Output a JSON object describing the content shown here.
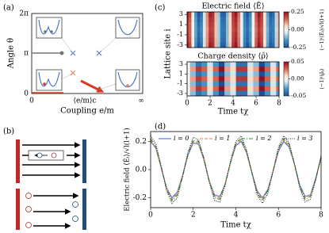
{
  "diagram_a": {
    "label": "(a)",
    "ylabel": "Angle θ",
    "yticks": [
      "2π",
      "π",
      "0"
    ],
    "xlabel": "Coupling e/m",
    "xticks": [
      "0",
      "⟨e/m⟩c",
      "∞"
    ]
  },
  "diagram_b": {
    "label": "(b)"
  },
  "chart_data": [
    {
      "type": "heatmap",
      "label": "(c)",
      "title": "Electric field ⟨Ê⟩",
      "colorbar_label": "(−1)ⁱ⟨Êᵢ⟩/√l(l+1)",
      "x": [
        0,
        0.25,
        0.5,
        0.75,
        1,
        1.25,
        1.5,
        1.75,
        2,
        2.25,
        2.5,
        2.75,
        3,
        3.25,
        3.5,
        3.75,
        4,
        4.25,
        4.5,
        4.75,
        5,
        5.25,
        5.5,
        5.75,
        6,
        6.25,
        6.5,
        6.75,
        7,
        7.25,
        7.5,
        7.75,
        8
      ],
      "y": [
        3,
        2,
        1,
        0,
        -1,
        -2,
        -3
      ],
      "values": [
        [
          0.24,
          0.18,
          0.02,
          -0.15,
          -0.24,
          -0.2,
          -0.05,
          0.12,
          0.23,
          0.21,
          0.08,
          -0.09,
          -0.22,
          -0.23,
          -0.11,
          0.06,
          0.2,
          0.24,
          0.14,
          -0.02,
          -0.18,
          -0.24,
          -0.17,
          -0.01,
          0.16,
          0.24,
          0.19,
          0.04,
          -0.13,
          -0.23,
          -0.21,
          -0.07,
          0.1
        ],
        [
          0.22,
          0.16,
          0.02,
          -0.14,
          -0.22,
          -0.18,
          -0.05,
          0.11,
          0.21,
          0.2,
          0.08,
          -0.08,
          -0.2,
          -0.21,
          -0.1,
          0.05,
          0.19,
          0.22,
          0.13,
          -0.02,
          -0.17,
          -0.22,
          -0.15,
          -0.01,
          0.15,
          0.22,
          0.18,
          0.04,
          -0.12,
          -0.21,
          -0.19,
          -0.07,
          0.09
        ],
        [
          0.21,
          0.15,
          0.01,
          -0.13,
          -0.21,
          -0.17,
          -0.04,
          0.11,
          0.2,
          0.19,
          0.07,
          -0.08,
          -0.19,
          -0.2,
          -0.1,
          0.05,
          0.18,
          0.21,
          0.12,
          -0.02,
          -0.16,
          -0.21,
          -0.15,
          -0.01,
          0.14,
          0.21,
          0.17,
          0.04,
          -0.12,
          -0.2,
          -0.18,
          -0.07,
          0.09
        ],
        [
          0.2,
          0.15,
          0.01,
          -0.13,
          -0.2,
          -0.16,
          -0.04,
          0.1,
          0.19,
          0.18,
          0.07,
          -0.08,
          -0.18,
          -0.19,
          -0.1,
          0.05,
          0.17,
          0.2,
          0.12,
          -0.02,
          -0.15,
          -0.2,
          -0.14,
          -0.01,
          0.13,
          0.2,
          0.16,
          0.04,
          -0.11,
          -0.19,
          -0.18,
          -0.06,
          0.08
        ],
        [
          0.21,
          0.15,
          0.01,
          -0.13,
          -0.21,
          -0.17,
          -0.04,
          0.11,
          0.2,
          0.19,
          0.07,
          -0.08,
          -0.19,
          -0.2,
          -0.1,
          0.05,
          0.18,
          0.21,
          0.12,
          -0.02,
          -0.16,
          -0.21,
          -0.15,
          -0.01,
          0.14,
          0.21,
          0.17,
          0.04,
          -0.12,
          -0.2,
          -0.18,
          -0.07,
          0.09
        ],
        [
          0.22,
          0.16,
          0.02,
          -0.14,
          -0.22,
          -0.18,
          -0.05,
          0.11,
          0.21,
          0.2,
          0.08,
          -0.08,
          -0.2,
          -0.21,
          -0.1,
          0.05,
          0.19,
          0.22,
          0.13,
          -0.02,
          -0.17,
          -0.22,
          -0.15,
          -0.01,
          0.15,
          0.22,
          0.18,
          0.04,
          -0.12,
          -0.21,
          -0.19,
          -0.07,
          0.09
        ],
        [
          0.24,
          0.18,
          0.02,
          -0.15,
          -0.24,
          -0.2,
          -0.05,
          0.12,
          0.23,
          0.21,
          0.08,
          -0.09,
          -0.22,
          -0.23,
          -0.11,
          0.06,
          0.2,
          0.24,
          0.14,
          -0.02,
          -0.18,
          -0.24,
          -0.17,
          -0.01,
          0.16,
          0.24,
          0.19,
          0.04,
          -0.13,
          -0.23,
          -0.21,
          -0.07,
          0.1
        ]
      ],
      "xlim": [
        0,
        8
      ],
      "ylim": [
        -3.5,
        3.5
      ],
      "yticks": [
        3,
        1,
        -1,
        -3
      ],
      "vlim": [
        -0.25,
        0.25
      ],
      "vticks": [
        0.25,
        {
          "value": 0,
          "label": "0.00"
        },
        -0.25
      ]
    },
    {
      "type": "heatmap",
      "title": "Charge density ⟨ρ̂⟩",
      "colorbar_label": "(−1)ⁱ⟨ρ̂ᵢ⟩",
      "xlabel": "Time tχ",
      "ylabel": "Lattice site i",
      "x": [
        0,
        0.5,
        1,
        1.5,
        2,
        2.5,
        3,
        3.5,
        4,
        4.5,
        5,
        5.5,
        6,
        6.5,
        7,
        7.5,
        8
      ],
      "y": [
        3,
        2,
        1,
        0,
        -1,
        -2,
        -3
      ],
      "values": [
        [
          0.0,
          -0.02,
          -0.04,
          -0.03,
          -0.01,
          -0.03,
          -0.05,
          -0.02,
          -0.01,
          -0.04,
          -0.04,
          -0.01,
          -0.02,
          -0.05,
          -0.03,
          -0.01,
          -0.03
        ],
        [
          0.0,
          0.02,
          0.04,
          0.03,
          0.01,
          0.03,
          0.05,
          0.02,
          0.01,
          0.04,
          0.04,
          0.01,
          0.02,
          0.05,
          0.03,
          0.01,
          0.03
        ],
        [
          0.0,
          -0.02,
          -0.04,
          -0.03,
          -0.01,
          -0.03,
          -0.05,
          -0.02,
          -0.01,
          -0.04,
          -0.04,
          -0.01,
          -0.02,
          -0.05,
          -0.03,
          -0.01,
          -0.03
        ],
        [
          0.0,
          0.02,
          0.04,
          0.03,
          0.01,
          0.03,
          0.05,
          0.02,
          0.01,
          0.04,
          0.04,
          0.01,
          0.02,
          0.05,
          0.03,
          0.01,
          0.03
        ],
        [
          0.0,
          -0.02,
          -0.04,
          -0.03,
          -0.01,
          -0.03,
          -0.05,
          -0.02,
          -0.01,
          -0.04,
          -0.04,
          -0.01,
          -0.02,
          -0.05,
          -0.03,
          -0.01,
          -0.03
        ],
        [
          0.0,
          0.02,
          0.04,
          0.03,
          0.01,
          0.03,
          0.05,
          0.02,
          0.01,
          0.04,
          0.04,
          0.01,
          0.02,
          0.05,
          0.03,
          0.01,
          0.03
        ],
        [
          0.0,
          -0.02,
          -0.04,
          -0.03,
          -0.01,
          -0.03,
          -0.05,
          -0.02,
          -0.01,
          -0.04,
          -0.04,
          -0.01,
          -0.02,
          -0.05,
          -0.03,
          -0.01,
          -0.03
        ]
      ],
      "xlim": [
        0,
        8
      ],
      "ylim": [
        -3.5,
        3.5
      ],
      "xticks": [
        0,
        2,
        4,
        6,
        8
      ],
      "yticks": [
        3,
        1,
        -1,
        -3
      ],
      "vlim": [
        -0.05,
        0.05
      ],
      "vticks": [
        0.05,
        {
          "value": 0,
          "label": "0.00"
        },
        -0.05
      ]
    },
    {
      "type": "line",
      "label": "(d)",
      "xlabel": "Time tχ",
      "ylabel": "Electric field ⟨Êᵢ⟩/√l(l+1)",
      "x": [
        0,
        0.25,
        0.5,
        0.75,
        1,
        1.25,
        1.5,
        1.75,
        2,
        2.25,
        2.5,
        2.75,
        3,
        3.25,
        3.5,
        3.75,
        4,
        4.25,
        4.5,
        4.75,
        5,
        5.25,
        5.5,
        5.75,
        6,
        6.25,
        6.5,
        6.75,
        7,
        7.25,
        7.5,
        7.75,
        8
      ],
      "series": [
        {
          "name": "i = 0",
          "color": "#4c6fd6",
          "style": "solid",
          "values": [
            0.2,
            0.15,
            0.01,
            -0.13,
            -0.2,
            -0.16,
            -0.04,
            0.1,
            0.19,
            0.18,
            0.07,
            -0.08,
            -0.18,
            -0.19,
            -0.1,
            0.05,
            0.17,
            0.2,
            0.12,
            -0.02,
            -0.15,
            -0.2,
            -0.14,
            -0.01,
            0.13,
            0.2,
            0.16,
            0.04,
            -0.11,
            -0.19,
            -0.18,
            -0.06,
            0.08
          ]
        },
        {
          "name": "i = 1",
          "color": "#f07a4a",
          "style": "dashed",
          "values": [
            0.21,
            0.15,
            0.01,
            -0.13,
            -0.21,
            -0.17,
            -0.04,
            0.11,
            0.2,
            0.19,
            0.07,
            -0.08,
            -0.19,
            -0.2,
            -0.1,
            0.05,
            0.18,
            0.21,
            0.12,
            -0.02,
            -0.16,
            -0.21,
            -0.15,
            -0.01,
            0.14,
            0.21,
            0.17,
            0.04,
            -0.12,
            -0.2,
            -0.18,
            -0.07,
            0.09
          ]
        },
        {
          "name": "i = 2",
          "color": "#2e8b2e",
          "style": "dashdot",
          "values": [
            0.22,
            0.16,
            0.02,
            -0.14,
            -0.22,
            -0.18,
            -0.05,
            0.11,
            0.21,
            0.2,
            0.08,
            -0.08,
            -0.2,
            -0.21,
            -0.1,
            0.05,
            0.19,
            0.22,
            0.13,
            -0.02,
            -0.17,
            -0.22,
            -0.15,
            -0.01,
            0.15,
            0.22,
            0.18,
            0.04,
            -0.12,
            -0.21,
            -0.19,
            -0.07,
            0.09
          ]
        },
        {
          "name": "i = 3",
          "color": "#222222",
          "style": "dotted",
          "values": [
            0.24,
            0.18,
            0.02,
            -0.15,
            -0.24,
            -0.2,
            -0.05,
            0.12,
            0.23,
            0.21,
            0.08,
            -0.09,
            -0.22,
            -0.23,
            -0.11,
            0.06,
            0.2,
            0.24,
            0.14,
            -0.02,
            -0.18,
            -0.24,
            -0.17,
            -0.01,
            0.16,
            0.24,
            0.19,
            0.04,
            -0.13,
            -0.23,
            -0.21,
            -0.07,
            0.1
          ]
        }
      ],
      "xlim": [
        0,
        8
      ],
      "ylim": [
        -0.27,
        0.27
      ],
      "xticks": [
        0,
        2,
        4,
        6,
        8
      ],
      "yticks": [
        -0.2,
        {
          "value": 0,
          "label": "0.0"
        },
        0.2
      ],
      "legend": "top"
    }
  ]
}
